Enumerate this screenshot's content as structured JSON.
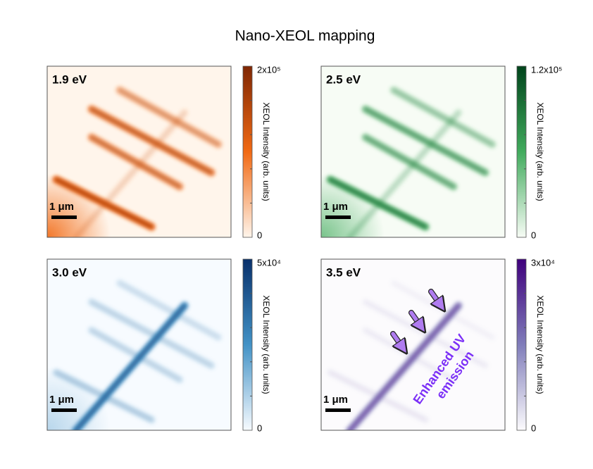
{
  "title": "Nano-XEOL mapping",
  "panels": [
    {
      "label": "1.9 eV",
      "colorbar_max": "2x10⁵",
      "colorbar_min": "0",
      "colorbar_label": "XEOL Intensity (arb. units)",
      "scale_bar": "1 μm"
    },
    {
      "label": "2.5 eV",
      "colorbar_max": "1.2x10⁵",
      "colorbar_min": "0",
      "colorbar_label": "XEOL Intensity (arb. units)",
      "scale_bar": "1 μm"
    },
    {
      "label": "3.0 eV",
      "colorbar_max": "5x10⁴",
      "colorbar_min": "0",
      "colorbar_label": "XEOL Intensity (arb. units)",
      "scale_bar": "1 μm"
    },
    {
      "label": "3.5 eV",
      "colorbar_max": "3x10⁴",
      "colorbar_min": "0",
      "colorbar_label": "XEOL Intensity (arb. units)",
      "scale_bar": "1 μm"
    }
  ],
  "annotation": {
    "lines": [
      "Enhanced UV",
      "emission"
    ]
  }
}
